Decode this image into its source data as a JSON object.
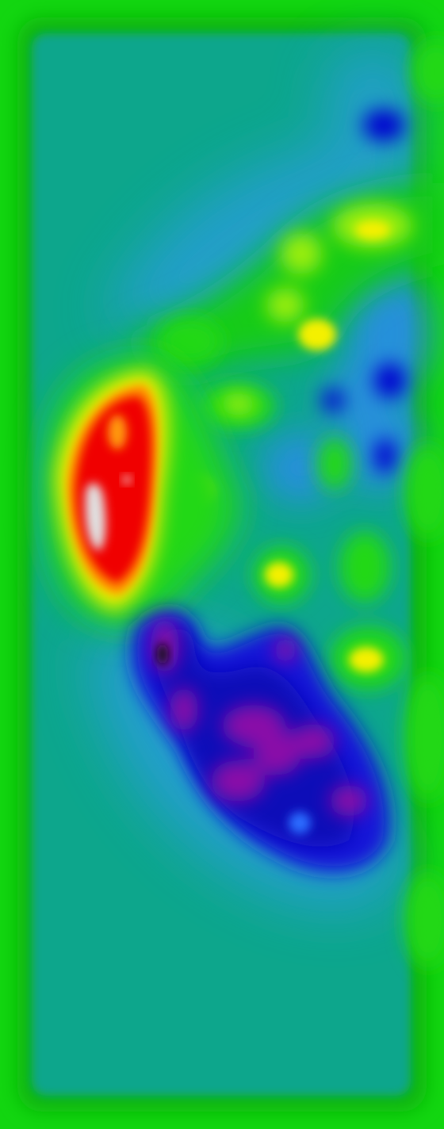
{
  "image": {
    "kind": "false-color intensity field",
    "palette": [
      "#000000",
      "#7a0a9c",
      "#0000c8",
      "#1a8cff",
      "#0aa68c",
      "#10c810",
      "#34e00a",
      "#ffe600",
      "#ff0000",
      "#ffffff"
    ],
    "background_color": "#0aa68c",
    "frame_color": "#12d610"
  }
}
